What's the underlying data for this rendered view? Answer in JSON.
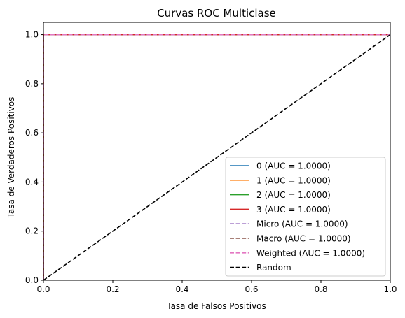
{
  "chart_data": {
    "type": "line",
    "title": "Curvas ROC Multiclase",
    "xlabel": "Tasa de Falsos Positivos",
    "ylabel": "Tasa de Verdaderos Positivos",
    "xlim": [
      0.0,
      1.0
    ],
    "ylim": [
      0.0,
      1.05
    ],
    "xticks": [
      "0.0",
      "0.2",
      "0.4",
      "0.6",
      "0.8",
      "1.0"
    ],
    "yticks": [
      "0.0",
      "0.2",
      "0.4",
      "0.6",
      "0.8",
      "1.0"
    ],
    "grid": false,
    "legend_position": "lower-right",
    "series": [
      {
        "name": "0 (AUC = 1.0000)",
        "color": "#1f77b4",
        "style": "solid",
        "x": [
          0.0,
          0.0,
          1.0
        ],
        "y": [
          0.0,
          1.0,
          1.0
        ]
      },
      {
        "name": "1 (AUC = 1.0000)",
        "color": "#ff7f0e",
        "style": "solid",
        "x": [
          0.0,
          0.0,
          1.0
        ],
        "y": [
          0.0,
          1.0,
          1.0
        ]
      },
      {
        "name": "2 (AUC = 1.0000)",
        "color": "#2ca02c",
        "style": "solid",
        "x": [
          0.0,
          0.0,
          1.0
        ],
        "y": [
          0.0,
          1.0,
          1.0
        ]
      },
      {
        "name": "3 (AUC = 1.0000)",
        "color": "#d62728",
        "style": "solid",
        "x": [
          0.0,
          0.0,
          1.0
        ],
        "y": [
          0.0,
          1.0,
          1.0
        ]
      },
      {
        "name": "Micro (AUC = 1.0000)",
        "color": "#9467bd",
        "style": "dashed",
        "x": [
          0.0,
          0.0,
          1.0
        ],
        "y": [
          0.0,
          1.0,
          1.0
        ]
      },
      {
        "name": "Macro (AUC = 1.0000)",
        "color": "#8c564b",
        "style": "dashed",
        "x": [
          0.0,
          0.0,
          1.0
        ],
        "y": [
          0.0,
          1.0,
          1.0
        ]
      },
      {
        "name": "Weighted (AUC = 1.0000)",
        "color": "#e377c2",
        "style": "dashed",
        "x": [
          0.0,
          0.0,
          1.0
        ],
        "y": [
          0.0,
          1.0,
          1.0
        ]
      },
      {
        "name": "Random",
        "color": "#000000",
        "style": "dashed",
        "x": [
          0.0,
          1.0
        ],
        "y": [
          0.0,
          1.0
        ]
      }
    ]
  }
}
